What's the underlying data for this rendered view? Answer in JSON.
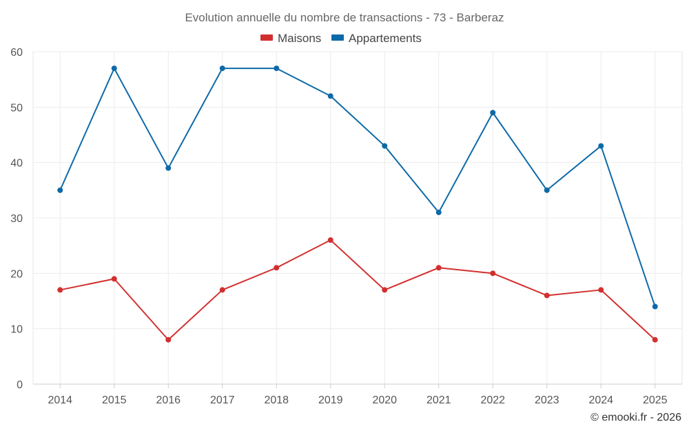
{
  "chart_data": {
    "type": "line",
    "title": "Evolution annuelle du nombre de transactions - 73 - Barberaz",
    "categories": [
      "2014",
      "2015",
      "2016",
      "2017",
      "2018",
      "2019",
      "2020",
      "2021",
      "2022",
      "2023",
      "2024",
      "2025"
    ],
    "series": [
      {
        "name": "Maisons",
        "color": "#d32f2f",
        "values": [
          17,
          19,
          8,
          17,
          21,
          26,
          17,
          21,
          20,
          16,
          17,
          8
        ]
      },
      {
        "name": "Appartements",
        "color": "#0d6aa8",
        "values": [
          35,
          57,
          39,
          57,
          57,
          52,
          43,
          31,
          49,
          35,
          43,
          14
        ]
      }
    ],
    "ylim": [
      0,
      60
    ],
    "yticks": [
      0,
      10,
      20,
      30,
      40,
      50,
      60
    ],
    "grid": true,
    "legend_position": "top-center",
    "xlabel": "",
    "ylabel": ""
  },
  "credit": "© emooki.fr - 2026"
}
